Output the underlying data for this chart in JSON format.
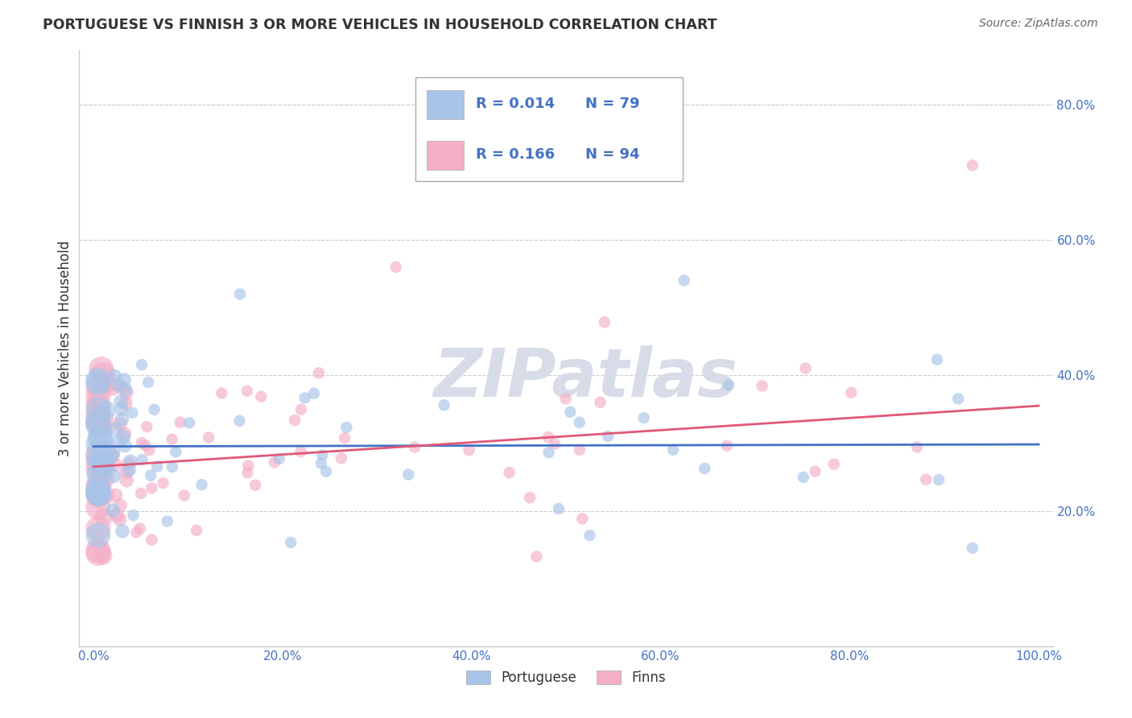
{
  "title": "PORTUGUESE VS FINNISH 3 OR MORE VEHICLES IN HOUSEHOLD CORRELATION CHART",
  "source": "Source: ZipAtlas.com",
  "ylabel": "3 or more Vehicles in Household",
  "blue_R": "R = 0.014",
  "blue_N": "N = 79",
  "pink_R": "R = 0.166",
  "pink_N": "N = 94",
  "blue_color": "#a8c4e8",
  "pink_color": "#f4aec8",
  "blue_line_color": "#4472c4",
  "pink_line_color": "#e05878",
  "legend_label_color": "#4472c4",
  "tick_color": "#4472c4",
  "watermark_color": "#d8dce8",
  "xlim": [
    -0.015,
    1.015
  ],
  "ylim": [
    0.0,
    0.88
  ],
  "xticks": [
    0.0,
    0.2,
    0.4,
    0.6,
    0.8,
    1.0
  ],
  "yticks": [
    0.2,
    0.4,
    0.6,
    0.8
  ],
  "xticklabels": [
    "0.0%",
    "20.0%",
    "40.0%",
    "60.0%",
    "80.0%",
    "100.0%"
  ],
  "yticklabels": [
    "20.0%",
    "40.0%",
    "60.0%",
    "80.0%"
  ],
  "blue_line_x0": 0.0,
  "blue_line_x1": 1.0,
  "blue_line_y0": 0.295,
  "blue_line_y1": 0.298,
  "pink_line_x0": 0.0,
  "pink_line_x1": 1.0,
  "pink_line_y0": 0.265,
  "pink_line_y1": 0.355,
  "dot_size": 120,
  "dot_alpha": 0.65,
  "legend_entries": [
    {
      "color": "#a8c4e8",
      "R": "R = 0.014",
      "N": "N = 79"
    },
    {
      "color": "#f4aec8",
      "R": "R = 0.166",
      "N": "N = 94"
    }
  ],
  "bottom_legend": [
    "Portuguese",
    "Finns"
  ]
}
